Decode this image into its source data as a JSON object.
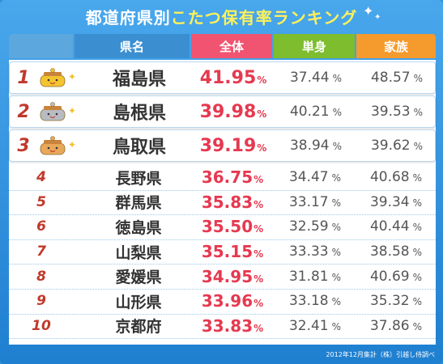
{
  "title": {
    "prefix": "都道府県別",
    "highlight": "こたつ保有率ランキング"
  },
  "headers": {
    "prefecture": "県名",
    "overall": "全体",
    "single": "単身",
    "family": "家族"
  },
  "colors": {
    "overall_header": "#f05470",
    "single_header": "#7dbd2e",
    "family_header": "#f59a2c",
    "overall_value": "#e63950",
    "rank": "#c0392b"
  },
  "percent_symbol": "%",
  "rows": [
    {
      "rank": "1",
      "pref": "福島県",
      "overall": "41.95",
      "single": "37.44",
      "family": "48.57",
      "medal": "gold"
    },
    {
      "rank": "2",
      "pref": "島根県",
      "overall": "39.98",
      "single": "40.21",
      "family": "39.53",
      "medal": "silver"
    },
    {
      "rank": "3",
      "pref": "鳥取県",
      "overall": "39.19",
      "single": "38.94",
      "family": "39.62",
      "medal": "bronze"
    },
    {
      "rank": "4",
      "pref": "長野県",
      "overall": "36.75",
      "single": "34.47",
      "family": "40.68"
    },
    {
      "rank": "5",
      "pref": "群馬県",
      "overall": "35.83",
      "single": "33.17",
      "family": "39.34"
    },
    {
      "rank": "6",
      "pref": "徳島県",
      "overall": "35.50",
      "single": "32.59",
      "family": "40.44"
    },
    {
      "rank": "7",
      "pref": "山梨県",
      "overall": "35.15",
      "single": "33.33",
      "family": "38.58"
    },
    {
      "rank": "8",
      "pref": "愛媛県",
      "overall": "34.95",
      "single": "31.81",
      "family": "40.69"
    },
    {
      "rank": "9",
      "pref": "山形県",
      "overall": "33.96",
      "single": "33.18",
      "family": "35.32"
    },
    {
      "rank": "10",
      "pref": "京都府",
      "overall": "33.83",
      "single": "32.41",
      "family": "37.86"
    }
  ],
  "footer": "2012年12月集計（株）引越し侍調べ",
  "chart_data": {
    "type": "table",
    "title": "都道府県別こたつ保有率ランキング",
    "columns": [
      "県名",
      "全体",
      "単身",
      "家族"
    ],
    "categories": [
      "福島県",
      "島根県",
      "鳥取県",
      "長野県",
      "群馬県",
      "徳島県",
      "山梨県",
      "愛媛県",
      "山形県",
      "京都府"
    ],
    "series": [
      {
        "name": "全体",
        "values": [
          41.95,
          39.98,
          39.19,
          36.75,
          35.83,
          35.5,
          35.15,
          34.95,
          33.96,
          33.83
        ]
      },
      {
        "name": "単身",
        "values": [
          37.44,
          40.21,
          38.94,
          34.47,
          33.17,
          32.59,
          33.33,
          31.81,
          33.18,
          32.41
        ]
      },
      {
        "name": "家族",
        "values": [
          48.57,
          39.53,
          39.62,
          40.68,
          39.34,
          40.44,
          38.58,
          40.69,
          35.32,
          37.86
        ]
      }
    ]
  }
}
